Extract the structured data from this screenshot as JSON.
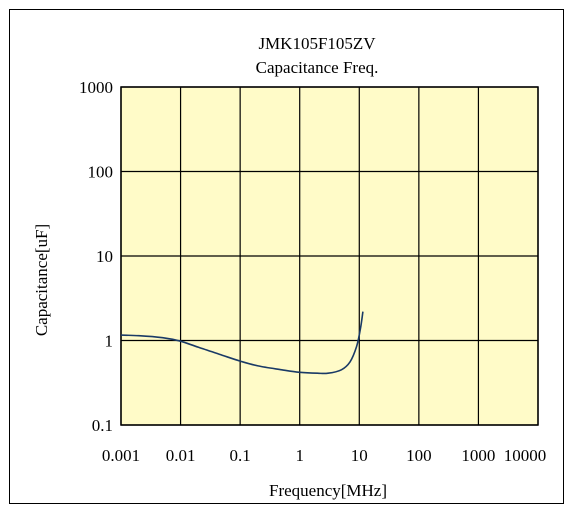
{
  "chart_data": {
    "type": "line",
    "title": "JMK105F105ZV",
    "subtitle": "Capacitance Freq.",
    "xlabel": "Frequency[MHz]",
    "ylabel": "Capacitance[uF]",
    "x_scale": "log",
    "y_scale": "log",
    "xlim": [
      0.001,
      10000
    ],
    "ylim": [
      0.1,
      1000
    ],
    "x_ticks": [
      0.001,
      0.01,
      0.1,
      1,
      10,
      100,
      1000,
      10000
    ],
    "y_ticks": [
      0.1,
      1,
      10,
      100,
      1000
    ],
    "x_tick_labels": [
      "0.001",
      "0.01",
      "0.1",
      "1",
      "10",
      "100",
      "1000",
      "10000"
    ],
    "y_tick_labels": [
      "0.1",
      "1",
      "10",
      "100",
      "1000"
    ],
    "grid": true,
    "legend": "none",
    "colors": {
      "plot_background": "#fffbc8",
      "series_line": "#1a3a66",
      "grid": "#000000"
    },
    "series": [
      {
        "points": [
          {
            "x": 0.001,
            "y": 1.16
          },
          {
            "x": 0.002,
            "y": 1.14
          },
          {
            "x": 0.005,
            "y": 1.08
          },
          {
            "x": 0.01,
            "y": 0.98
          },
          {
            "x": 0.02,
            "y": 0.83
          },
          {
            "x": 0.05,
            "y": 0.67
          },
          {
            "x": 0.1,
            "y": 0.57
          },
          {
            "x": 0.2,
            "y": 0.5
          },
          {
            "x": 0.5,
            "y": 0.45
          },
          {
            "x": 1,
            "y": 0.42
          },
          {
            "x": 2,
            "y": 0.41
          },
          {
            "x": 3,
            "y": 0.41
          },
          {
            "x": 5,
            "y": 0.45
          },
          {
            "x": 7,
            "y": 0.56
          },
          {
            "x": 9,
            "y": 0.85
          },
          {
            "x": 10.5,
            "y": 1.4
          },
          {
            "x": 11.5,
            "y": 2.2
          }
        ]
      }
    ]
  }
}
